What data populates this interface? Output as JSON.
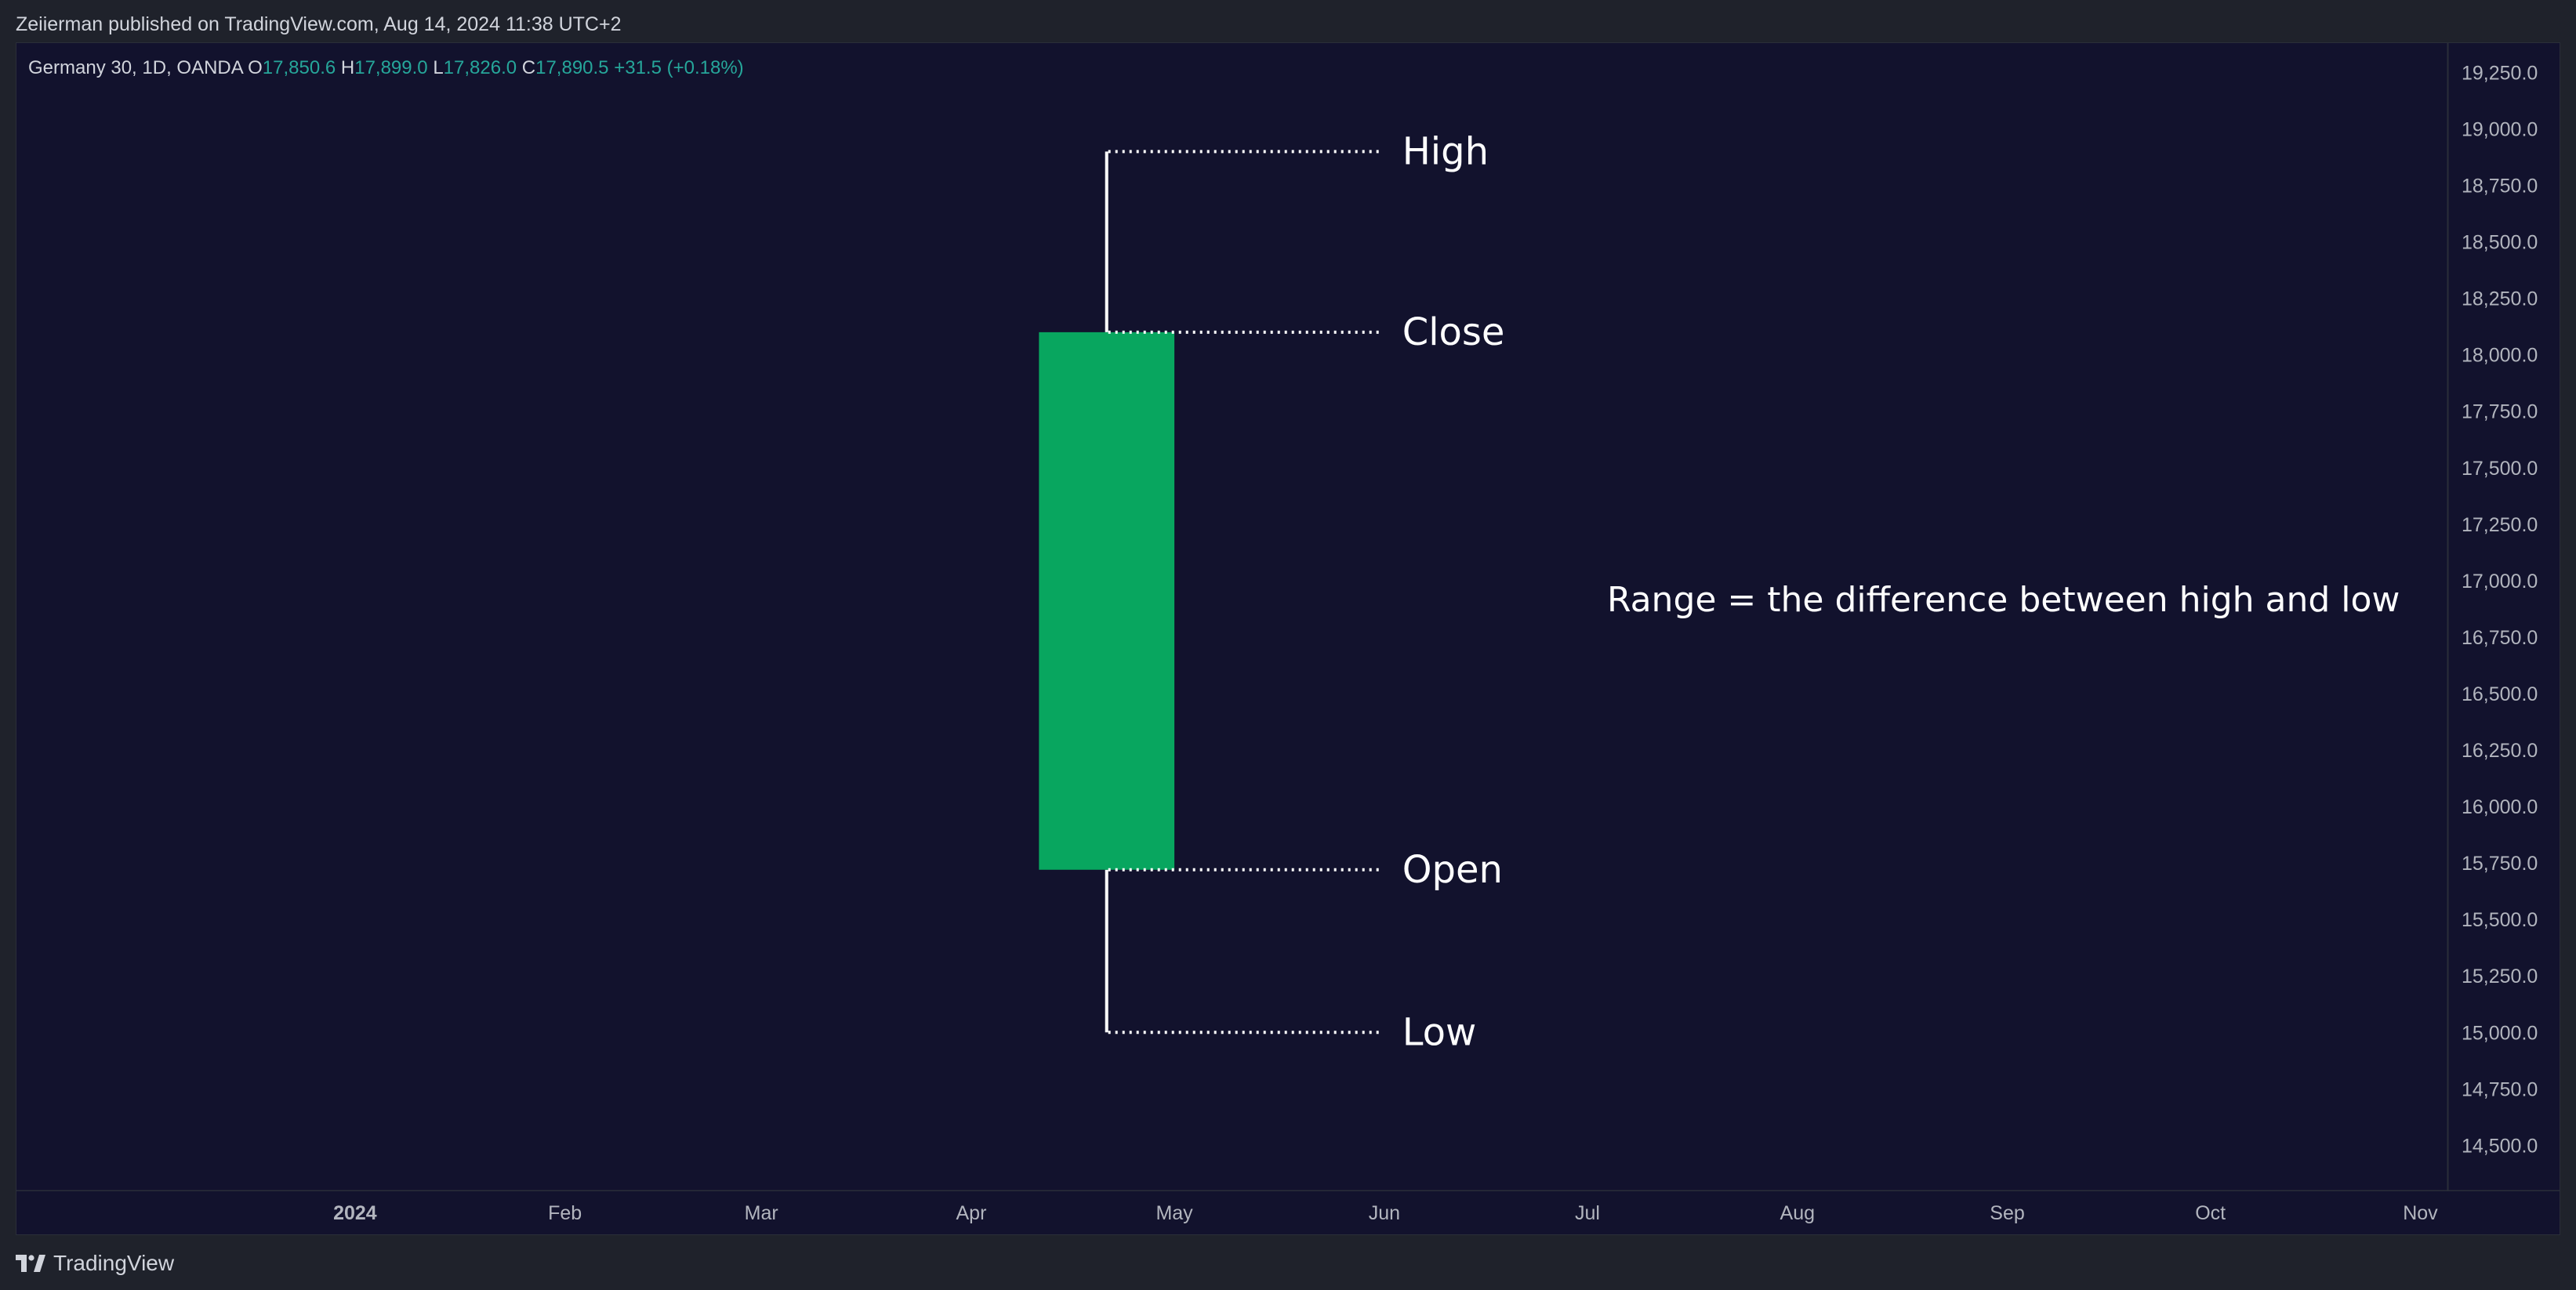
{
  "header": {
    "published_text": "Zeiierman published on TradingView.com, Aug 14, 2024 11:38 UTC+2"
  },
  "footer": {
    "brand_label": "TradingView"
  },
  "colors": {
    "background": "#12122d",
    "candle_up": "#08a65f",
    "legend_value": "#26a69a",
    "text": "#d1d4dc",
    "annotation": "#ffffff"
  },
  "chart_data": {
    "type": "candlestick",
    "legend": {
      "symbol": "Germany 30, 1D, OANDA",
      "open_label": "O",
      "open_value": "17,850.6",
      "high_label": "H",
      "high_value": "17,899.0",
      "low_label": "L",
      "low_value": "17,826.0",
      "close_label": "C",
      "close_value": "17,890.5",
      "change": "+31.5 (+0.18%)"
    },
    "y_ticks": [
      "19,250.0",
      "19,000.0",
      "18,750.0",
      "18,500.0",
      "18,250.0",
      "18,000.0",
      "17,750.0",
      "17,500.0",
      "17,250.0",
      "17,000.0",
      "16,750.0",
      "16,500.0",
      "16,250.0",
      "16,000.0",
      "15,750.0",
      "15,500.0",
      "15,250.0",
      "15,000.0",
      "14,750.0",
      "14,500.0"
    ],
    "y_tick_values": [
      19250,
      19000,
      18750,
      18500,
      18250,
      18000,
      17750,
      17500,
      17250,
      17000,
      16750,
      16500,
      16250,
      16000,
      15750,
      15500,
      15250,
      15000,
      14750,
      14500
    ],
    "ylim": [
      14300,
      19380
    ],
    "x_ticks": [
      {
        "label": "2024",
        "date": "2024-01-01",
        "bold": true
      },
      {
        "label": "Feb",
        "date": "2024-02-01"
      },
      {
        "label": "Mar",
        "date": "2024-03-01"
      },
      {
        "label": "Apr",
        "date": "2024-04-01"
      },
      {
        "label": "May",
        "date": "2024-05-01"
      },
      {
        "label": "Jun",
        "date": "2024-06-01"
      },
      {
        "label": "Jul",
        "date": "2024-07-01"
      },
      {
        "label": "Aug",
        "date": "2024-08-01"
      },
      {
        "label": "Sep",
        "date": "2024-09-01"
      },
      {
        "label": "Oct",
        "date": "2024-10-01"
      },
      {
        "label": "Nov",
        "date": "2024-11-01"
      }
    ],
    "xlim": [
      "2023-11-12",
      "2024-11-05"
    ],
    "candle": {
      "start": "2024-04-11",
      "end": "2024-05-01",
      "center": "2024-04-21",
      "open": 15720,
      "high": 18900,
      "low": 15000,
      "close": 18100
    },
    "annotations": {
      "high": "High",
      "close": "Close",
      "open": "Open",
      "low": "Low",
      "range_text": "Range = the difference between high and low"
    },
    "range_text_date": "2024-07-01",
    "range_text_price": 16920,
    "grid": false
  }
}
